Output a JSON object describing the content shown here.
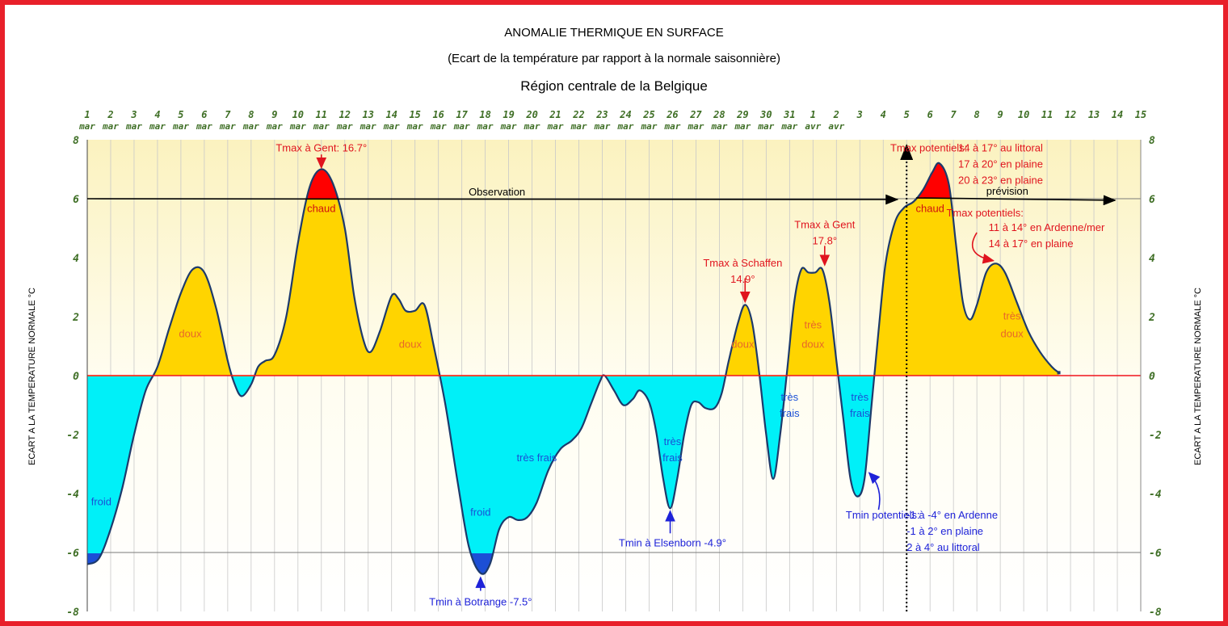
{
  "chart_data": {
    "type": "area",
    "title": "ANOMALIE THERMIQUE EN SURFACE",
    "subtitle": "(Ecart de la température par rapport à la normale saisonnière)",
    "region": "Région centrale de la Belgique",
    "ylabel": "ECART A LA TEMPERATURE NORMALE °C",
    "ylim": [
      -8,
      8
    ],
    "yticks": [
      "8",
      "6",
      "4",
      "2",
      "0",
      "-2",
      "-4",
      "-6",
      "-8"
    ],
    "x_ticks": [
      {
        "day": "1",
        "month": "mar"
      },
      {
        "day": "2",
        "month": "mar"
      },
      {
        "day": "3",
        "month": "mar"
      },
      {
        "day": "4",
        "month": "mar"
      },
      {
        "day": "5",
        "month": "mar"
      },
      {
        "day": "6",
        "month": "mar"
      },
      {
        "day": "7",
        "month": "mar"
      },
      {
        "day": "8",
        "month": "mar"
      },
      {
        "day": "9",
        "month": "mar"
      },
      {
        "day": "10",
        "month": "mar"
      },
      {
        "day": "11",
        "month": "mar"
      },
      {
        "day": "12",
        "month": "mar"
      },
      {
        "day": "13",
        "month": "mar"
      },
      {
        "day": "14",
        "month": "mar"
      },
      {
        "day": "15",
        "month": "mar"
      },
      {
        "day": "16",
        "month": "mar"
      },
      {
        "day": "17",
        "month": "mar"
      },
      {
        "day": "18",
        "month": "mar"
      },
      {
        "day": "19",
        "month": "mar"
      },
      {
        "day": "20",
        "month": "mar"
      },
      {
        "day": "21",
        "month": "mar"
      },
      {
        "day": "22",
        "month": "mar"
      },
      {
        "day": "23",
        "month": "mar"
      },
      {
        "day": "24",
        "month": "mar"
      },
      {
        "day": "25",
        "month": "mar"
      },
      {
        "day": "26",
        "month": "mar"
      },
      {
        "day": "27",
        "month": "mar"
      },
      {
        "day": "28",
        "month": "mar"
      },
      {
        "day": "29",
        "month": "mar"
      },
      {
        "day": "30",
        "month": "mar"
      },
      {
        "day": "31",
        "month": "mar"
      },
      {
        "day": "1",
        "month": "avr"
      },
      {
        "day": "2",
        "month": "avr"
      },
      {
        "day": "3",
        "month": ""
      },
      {
        "day": "4",
        "month": ""
      },
      {
        "day": "5",
        "month": ""
      },
      {
        "day": "6",
        "month": ""
      },
      {
        "day": "7",
        "month": ""
      },
      {
        "day": "8",
        "month": ""
      },
      {
        "day": "9",
        "month": ""
      },
      {
        "day": "10",
        "month": ""
      },
      {
        "day": "11",
        "month": ""
      },
      {
        "day": "12",
        "month": ""
      },
      {
        "day": "13",
        "month": ""
      },
      {
        "day": "14",
        "month": ""
      },
      {
        "day": "15",
        "month": ""
      }
    ],
    "series": [
      {
        "points": [
          [
            0.0,
            -6.4
          ],
          [
            0.5,
            -6.2
          ],
          [
            1.0,
            -5.2
          ],
          [
            1.5,
            -3.8
          ],
          [
            2.0,
            -2.0
          ],
          [
            2.5,
            -0.5
          ],
          [
            3.0,
            0.3
          ],
          [
            3.5,
            1.6
          ],
          [
            4.0,
            2.8
          ],
          [
            4.5,
            3.6
          ],
          [
            5.0,
            3.5
          ],
          [
            5.5,
            2.3
          ],
          [
            6.0,
            0.5
          ],
          [
            6.3,
            -0.3
          ],
          [
            6.6,
            -0.7
          ],
          [
            7.0,
            -0.3
          ],
          [
            7.3,
            0.3
          ],
          [
            7.6,
            0.5
          ],
          [
            8.0,
            0.7
          ],
          [
            8.5,
            2.0
          ],
          [
            9.0,
            4.5
          ],
          [
            9.5,
            6.4
          ],
          [
            10.0,
            7.0
          ],
          [
            10.5,
            6.5
          ],
          [
            11.0,
            5.0
          ],
          [
            11.4,
            2.7
          ],
          [
            11.8,
            1.2
          ],
          [
            12.1,
            0.8
          ],
          [
            12.5,
            1.5
          ],
          [
            13.0,
            2.7
          ],
          [
            13.3,
            2.6
          ],
          [
            13.6,
            2.2
          ],
          [
            14.0,
            2.2
          ],
          [
            14.4,
            2.4
          ],
          [
            14.8,
            1.0
          ],
          [
            15.3,
            -1.0
          ],
          [
            15.8,
            -3.5
          ],
          [
            16.3,
            -5.8
          ],
          [
            16.8,
            -6.7
          ],
          [
            17.2,
            -6.4
          ],
          [
            17.6,
            -5.2
          ],
          [
            18.0,
            -4.8
          ],
          [
            18.4,
            -4.9
          ],
          [
            18.8,
            -4.8
          ],
          [
            19.2,
            -4.3
          ],
          [
            19.7,
            -3.2
          ],
          [
            20.2,
            -2.5
          ],
          [
            20.7,
            -2.2
          ],
          [
            21.1,
            -1.8
          ],
          [
            21.5,
            -1.0
          ],
          [
            21.9,
            -0.2
          ],
          [
            22.1,
            0.0
          ],
          [
            22.5,
            -0.5
          ],
          [
            22.9,
            -1.0
          ],
          [
            23.3,
            -0.8
          ],
          [
            23.6,
            -0.5
          ],
          [
            24.0,
            -0.9
          ],
          [
            24.3,
            -1.9
          ],
          [
            24.6,
            -3.5
          ],
          [
            24.9,
            -4.5
          ],
          [
            25.2,
            -3.5
          ],
          [
            25.5,
            -2.0
          ],
          [
            25.8,
            -1.0
          ],
          [
            26.1,
            -0.9
          ],
          [
            26.4,
            -1.1
          ],
          [
            26.8,
            -1.1
          ],
          [
            27.1,
            -0.6
          ],
          [
            27.4,
            0.5
          ],
          [
            27.8,
            1.8
          ],
          [
            28.1,
            2.4
          ],
          [
            28.4,
            1.8
          ],
          [
            28.7,
            0.1
          ],
          [
            29.0,
            -2.0
          ],
          [
            29.3,
            -3.5
          ],
          [
            29.6,
            -2.0
          ],
          [
            29.9,
            0.2
          ],
          [
            30.2,
            2.5
          ],
          [
            30.5,
            3.6
          ],
          [
            30.8,
            3.5
          ],
          [
            31.1,
            3.5
          ],
          [
            31.4,
            3.6
          ],
          [
            31.7,
            2.5
          ],
          [
            32.0,
            0.5
          ],
          [
            32.3,
            -1.5
          ],
          [
            32.6,
            -3.5
          ],
          [
            32.9,
            -4.1
          ],
          [
            33.2,
            -3.5
          ],
          [
            33.5,
            -1.0
          ],
          [
            33.8,
            1.5
          ],
          [
            34.1,
            3.8
          ],
          [
            34.5,
            5.2
          ],
          [
            34.9,
            5.7
          ],
          [
            35.3,
            5.9
          ],
          [
            35.7,
            6.3
          ],
          [
            36.1,
            6.9
          ],
          [
            36.4,
            7.2
          ],
          [
            36.8,
            6.5
          ],
          [
            37.1,
            4.5
          ],
          [
            37.4,
            2.5
          ],
          [
            37.7,
            1.9
          ],
          [
            38.0,
            2.4
          ],
          [
            38.4,
            3.5
          ],
          [
            38.8,
            3.8
          ],
          [
            39.2,
            3.5
          ],
          [
            39.7,
            2.5
          ],
          [
            40.2,
            1.5
          ],
          [
            40.7,
            0.8
          ],
          [
            41.2,
            0.3
          ],
          [
            41.5,
            0.1
          ]
        ]
      }
    ],
    "fill_colors": {
      "froid": "#1c4fd6",
      "tres_frais": "#00f0f8",
      "doux": "#ffd400",
      "chaud": "#ff0000"
    },
    "zone_labels": [
      {
        "text": "froid",
        "x": 0.6,
        "y": -4.4,
        "color": "#1a4fd6"
      },
      {
        "text": "doux",
        "x": 4.4,
        "y": 1.3,
        "color": "#e8672a"
      },
      {
        "text": "chaud",
        "x": 10.0,
        "y": 5.55,
        "color": "#d01010"
      },
      {
        "text": "doux",
        "x": 13.8,
        "y": 0.95,
        "color": "#e8672a"
      },
      {
        "text": "très frais",
        "x": 19.2,
        "y": -2.9,
        "color": "#1a4fd6"
      },
      {
        "text": "froid",
        "x": 16.8,
        "y": -4.75,
        "color": "#1a4fd6"
      },
      {
        "text": "très",
        "x": 25.0,
        "y": -2.35,
        "color": "#1a4fd6"
      },
      {
        "text": "frais",
        "x": 25.0,
        "y": -2.9,
        "color": "#1a4fd6"
      },
      {
        "text": "doux",
        "x": 28.0,
        "y": 0.95,
        "color": "#e8672a"
      },
      {
        "text": "très",
        "x": 31.0,
        "y": 1.6,
        "color": "#e8672a"
      },
      {
        "text": "doux",
        "x": 31.0,
        "y": 0.95,
        "color": "#e8672a"
      },
      {
        "text": "très",
        "x": 30.0,
        "y": -0.85,
        "color": "#1a4fd6"
      },
      {
        "text": "frais",
        "x": 30.0,
        "y": -1.4,
        "color": "#1a4fd6"
      },
      {
        "text": "très",
        "x": 33.0,
        "y": -0.85,
        "color": "#1a4fd6"
      },
      {
        "text": "frais",
        "x": 33.0,
        "y": -1.4,
        "color": "#1a4fd6"
      },
      {
        "text": "chaud",
        "x": 36.0,
        "y": 5.55,
        "color": "#d01010"
      },
      {
        "text": "très",
        "x": 39.5,
        "y": 1.9,
        "color": "#e8672a"
      },
      {
        "text": "doux",
        "x": 39.5,
        "y": 1.3,
        "color": "#e8672a"
      }
    ],
    "annotations": [
      {
        "lines": [
          "Tmax à Gent: 16.7°"
        ],
        "x": 10.0,
        "y": 7.6,
        "color": "#e0141e",
        "anchor": "middle"
      },
      {
        "lines": [
          "Tmax à Schaffen",
          "14.9°"
        ],
        "x": 28.0,
        "y": 3.7,
        "color": "#e0141e",
        "anchor": "middle"
      },
      {
        "lines": [
          "Tmax à Gent",
          "17.8°"
        ],
        "x": 31.5,
        "y": 5.0,
        "color": "#e0141e",
        "anchor": "middle"
      },
      {
        "lines": [
          "Tmax potentiels:"
        ],
        "x": 34.3,
        "y": 7.6,
        "color": "#e0141e",
        "anchor": "start"
      },
      {
        "lines": [
          "14 à 17° au littoral",
          "17 à 20° en plaine",
          "20 à 23° en plaine"
        ],
        "x": 37.2,
        "y": 7.6,
        "color": "#e0141e",
        "anchor": "start"
      },
      {
        "lines": [
          "Tmax potentiels:"
        ],
        "x": 36.7,
        "y": 5.4,
        "color": "#e0141e",
        "anchor": "start"
      },
      {
        "lines": [
          "11 à 14° en Ardenne/mer",
          "14 à 17° en plaine"
        ],
        "x": 38.5,
        "y": 4.9,
        "color": "#e0141e",
        "anchor": "start"
      },
      {
        "lines": [
          "Tmin à Elsenborn -4.9°"
        ],
        "x": 25.0,
        "y": -5.8,
        "color": "#1e22d8",
        "anchor": "middle"
      },
      {
        "lines": [
          "Tmin à Botrange -7.5°"
        ],
        "x": 16.8,
        "y": -7.8,
        "color": "#1e22d8",
        "anchor": "middle"
      },
      {
        "lines": [
          "Tmin potentiels:"
        ],
        "x": 32.4,
        "y": -4.85,
        "color": "#1e22d8",
        "anchor": "start"
      },
      {
        "lines": [
          "-1 à -4° en Ardenne",
          "-1 à 2° en plaine",
          "2 à 4° au littoral"
        ],
        "x": 35.0,
        "y": -4.85,
        "color": "#1e22d8",
        "anchor": "start"
      }
    ],
    "observation_label": "Observation",
    "prevision_label": "prévision",
    "forecast_start_x": 35.0
  }
}
